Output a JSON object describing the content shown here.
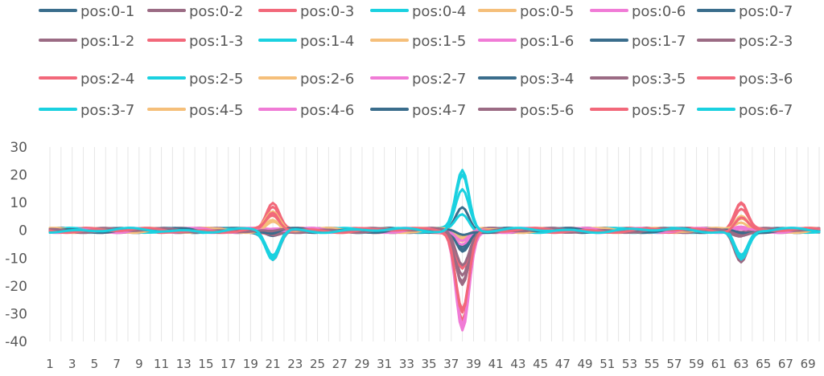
{
  "chart_data": {
    "type": "line",
    "title": "",
    "xlabel": "",
    "ylabel": "",
    "x_tick_labels": [
      "1",
      "3",
      "5",
      "7",
      "9",
      "11",
      "13",
      "15",
      "17",
      "19",
      "21",
      "23",
      "25",
      "27",
      "29",
      "31",
      "33",
      "35",
      "37",
      "39",
      "41",
      "43",
      "45",
      "47",
      "49",
      "51",
      "53",
      "55",
      "57",
      "59",
      "61",
      "63",
      "65",
      "67",
      "69"
    ],
    "y_ticks": [
      -40,
      -30,
      -20,
      -10,
      0,
      10,
      20,
      30
    ],
    "ylim": [
      -40,
      30
    ],
    "xlim": [
      1,
      70
    ],
    "grid": "vertical-minor",
    "legend_position": "top",
    "colors": [
      "#3a6d8c",
      "#9b6b84",
      "#f2687a",
      "#1ad1e0",
      "#f5bf7a",
      "#f07bd6"
    ],
    "series": [
      {
        "name": "pos:0-1",
        "peaks": [
          {
            "x": 21,
            "y": -2
          },
          {
            "x": 38,
            "y": -6
          },
          {
            "x": 63,
            "y": -2
          }
        ]
      },
      {
        "name": "pos:0-2",
        "peaks": [
          {
            "x": 21,
            "y": -1
          },
          {
            "x": 38,
            "y": -20
          },
          {
            "x": 63,
            "y": -1
          }
        ]
      },
      {
        "name": "pos:0-3",
        "peaks": [
          {
            "x": 21,
            "y": -1
          },
          {
            "x": 38,
            "y": -34
          },
          {
            "x": 63,
            "y": -1
          }
        ]
      },
      {
        "name": "pos:0-4",
        "peaks": [
          {
            "x": 21,
            "y": -10
          },
          {
            "x": 38,
            "y": 22
          },
          {
            "x": 63,
            "y": -10
          }
        ]
      },
      {
        "name": "pos:0-5",
        "peaks": [
          {
            "x": 21,
            "y": 5
          },
          {
            "x": 38,
            "y": -3
          },
          {
            "x": 63,
            "y": 5
          }
        ]
      },
      {
        "name": "pos:0-6",
        "peaks": [
          {
            "x": 21,
            "y": 0.5
          },
          {
            "x": 38,
            "y": -36
          },
          {
            "x": 63,
            "y": 0.5
          }
        ]
      },
      {
        "name": "pos:0-7",
        "peaks": [
          {
            "x": 21,
            "y": -1
          },
          {
            "x": 38,
            "y": 9
          },
          {
            "x": 63,
            "y": -1
          }
        ]
      },
      {
        "name": "pos:1-2",
        "peaks": [
          {
            "x": 21,
            "y": -2
          },
          {
            "x": 38,
            "y": -18
          },
          {
            "x": 63,
            "y": -2
          }
        ]
      },
      {
        "name": "pos:1-3",
        "peaks": [
          {
            "x": 21,
            "y": 9
          },
          {
            "x": 38,
            "y": -33
          },
          {
            "x": 63,
            "y": 9
          }
        ]
      },
      {
        "name": "pos:1-4",
        "peaks": [
          {
            "x": 21,
            "y": -9
          },
          {
            "x": 38,
            "y": -3
          },
          {
            "x": 63,
            "y": -9
          }
        ]
      },
      {
        "name": "pos:1-5",
        "peaks": [
          {
            "x": 21,
            "y": 4
          },
          {
            "x": 38,
            "y": -4
          },
          {
            "x": 63,
            "y": 4
          }
        ]
      },
      {
        "name": "pos:1-6",
        "peaks": [
          {
            "x": 21,
            "y": 0.5
          },
          {
            "x": 38,
            "y": -35
          },
          {
            "x": 63,
            "y": 0.5
          }
        ]
      },
      {
        "name": "pos:1-7",
        "peaks": [
          {
            "x": 21,
            "y": -10
          },
          {
            "x": 38,
            "y": -8
          },
          {
            "x": 63,
            "y": -10
          }
        ]
      },
      {
        "name": "pos:2-3",
        "peaks": [
          {
            "x": 21,
            "y": -11
          },
          {
            "x": 38,
            "y": -16
          },
          {
            "x": 63,
            "y": -11
          }
        ]
      },
      {
        "name": "pos:2-4",
        "peaks": [
          {
            "x": 21,
            "y": 10
          },
          {
            "x": 38,
            "y": -14
          },
          {
            "x": 63,
            "y": 10
          }
        ]
      },
      {
        "name": "pos:2-5",
        "peaks": [
          {
            "x": 21,
            "y": -10
          },
          {
            "x": 38,
            "y": 6
          },
          {
            "x": 63,
            "y": -10
          }
        ]
      },
      {
        "name": "pos:2-6",
        "peaks": [
          {
            "x": 21,
            "y": 6
          },
          {
            "x": 38,
            "y": -2
          },
          {
            "x": 63,
            "y": 6
          }
        ]
      },
      {
        "name": "pos:2-7",
        "peaks": [
          {
            "x": 21,
            "y": 0.5
          },
          {
            "x": 38,
            "y": -5
          },
          {
            "x": 63,
            "y": 0.5
          }
        ]
      },
      {
        "name": "pos:3-4",
        "peaks": [
          {
            "x": 21,
            "y": -1
          },
          {
            "x": 38,
            "y": -7
          },
          {
            "x": 63,
            "y": -1
          }
        ]
      },
      {
        "name": "pos:3-5",
        "peaks": [
          {
            "x": 21,
            "y": -1
          },
          {
            "x": 38,
            "y": -19
          },
          {
            "x": 63,
            "y": -1
          }
        ]
      },
      {
        "name": "pos:3-6",
        "peaks": [
          {
            "x": 21,
            "y": 7
          },
          {
            "x": 38,
            "y": -30
          },
          {
            "x": 63,
            "y": 7
          }
        ]
      },
      {
        "name": "pos:3-7",
        "peaks": [
          {
            "x": 21,
            "y": -10
          },
          {
            "x": 38,
            "y": 14
          },
          {
            "x": 63,
            "y": -10
          }
        ]
      },
      {
        "name": "pos:4-5",
        "peaks": [
          {
            "x": 21,
            "y": 3
          },
          {
            "x": 38,
            "y": -2
          },
          {
            "x": 63,
            "y": 3
          }
        ]
      },
      {
        "name": "pos:4-6",
        "peaks": [
          {
            "x": 21,
            "y": 0.5
          },
          {
            "x": 38,
            "y": -4
          },
          {
            "x": 63,
            "y": 0.5
          }
        ]
      },
      {
        "name": "pos:4-7",
        "peaks": [
          {
            "x": 21,
            "y": -1
          },
          {
            "x": 38,
            "y": -2
          },
          {
            "x": 63,
            "y": -1
          }
        ]
      },
      {
        "name": "pos:5-6",
        "peaks": [
          {
            "x": 21,
            "y": -1
          },
          {
            "x": 38,
            "y": -12
          },
          {
            "x": 63,
            "y": -1
          }
        ]
      },
      {
        "name": "pos:5-7",
        "peaks": [
          {
            "x": 21,
            "y": 5
          },
          {
            "x": 38,
            "y": -28
          },
          {
            "x": 63,
            "y": 5
          }
        ]
      },
      {
        "name": "pos:6-7",
        "peaks": [
          {
            "x": 21,
            "y": -10
          },
          {
            "x": 38,
            "y": 20
          },
          {
            "x": 63,
            "y": -10
          }
        ]
      }
    ]
  }
}
